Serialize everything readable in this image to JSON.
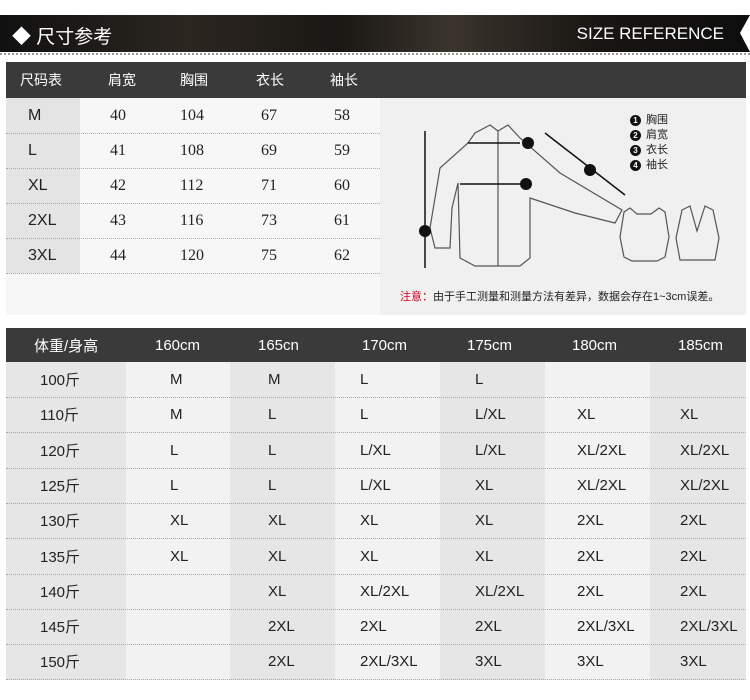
{
  "banner": {
    "title": "◆ 尺寸参考",
    "subtitle": "SIZE REFERENCE"
  },
  "size_table": {
    "headers": [
      "尺码表",
      "肩宽",
      "胸围",
      "衣长",
      "袖长"
    ],
    "rows": [
      [
        "M",
        "40",
        "104",
        "67",
        "58"
      ],
      [
        "L",
        "41",
        "108",
        "69",
        "59"
      ],
      [
        "XL",
        "42",
        "112",
        "71",
        "60"
      ],
      [
        "2XL",
        "43",
        "116",
        "73",
        "61"
      ],
      [
        "3XL",
        "44",
        "120",
        "75",
        "62"
      ]
    ]
  },
  "diagram": {
    "legend": [
      {
        "n": "1",
        "label": "胸围"
      },
      {
        "n": "2",
        "label": "肩宽"
      },
      {
        "n": "3",
        "label": "衣长"
      },
      {
        "n": "4",
        "label": "袖长"
      }
    ],
    "note_label": "注意：",
    "note_text": "由于手工测量和测量方法有差异，数据会存在1~3cm误差。"
  },
  "fit_table": {
    "headers": [
      "体重/身高",
      "160cm",
      "165cn",
      "170cm",
      "175cm",
      "180cm",
      "185cm"
    ],
    "rows": [
      [
        "100斤",
        "M",
        "M",
        "L",
        "L",
        "",
        ""
      ],
      [
        "110斤",
        "M",
        "L",
        "L",
        "L/XL",
        "XL",
        "XL"
      ],
      [
        "120斤",
        "L",
        "L",
        "L/XL",
        "L/XL",
        "XL/2XL",
        "XL/2XL"
      ],
      [
        "125斤",
        "L",
        "L",
        "L/XL",
        "XL",
        "XL/2XL",
        "XL/2XL"
      ],
      [
        "130斤",
        "XL",
        "XL",
        "XL",
        "XL",
        "2XL",
        "2XL"
      ],
      [
        "135斤",
        "XL",
        "XL",
        "XL",
        "XL",
        "2XL",
        "2XL"
      ],
      [
        "140斤",
        "",
        "XL",
        "XL/2XL",
        "XL/2XL",
        "2XL",
        "2XL"
      ],
      [
        "145斤",
        "",
        "2XL",
        "2XL",
        "2XL",
        "2XL/3XL",
        "2XL/3XL"
      ],
      [
        "150斤",
        "",
        "2XL",
        "2XL/3XL",
        "3XL",
        "3XL",
        "3XL"
      ]
    ]
  }
}
